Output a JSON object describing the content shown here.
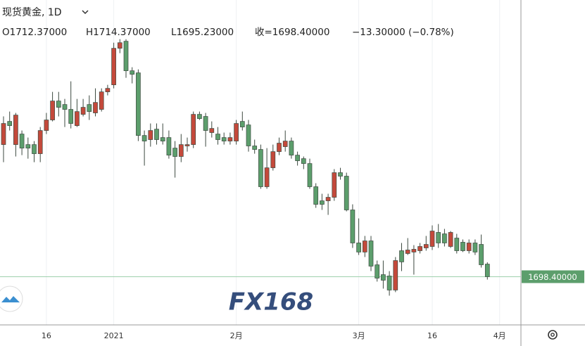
{
  "chart_data": {
    "type": "candlestick",
    "title": "现货黄金, 1D",
    "ohlc_header": [
      "O1712.37000",
      "H1714.37000",
      "L1695.23000",
      "收=1698.40000",
      "−13.30000 (−0.78%)"
    ],
    "watermark": "FX168",
    "categories": [
      null,
      null,
      null,
      null,
      null,
      null,
      null,
      "16",
      null,
      null,
      null,
      null,
      null,
      null,
      null,
      null,
      null,
      null,
      "2021",
      null,
      null,
      null,
      null,
      null,
      null,
      null,
      null,
      null,
      null,
      null,
      null,
      null,
      null,
      null,
      null,
      null,
      null,
      null,
      "2月",
      null,
      null,
      null,
      null,
      null,
      null,
      null,
      null,
      null,
      null,
      null,
      null,
      null,
      null,
      null,
      null,
      null,
      null,
      null,
      "3月",
      null,
      null,
      null,
      null,
      null,
      null,
      null,
      null,
      null,
      null,
      null,
      "16",
      null,
      null,
      null,
      null,
      null,
      null,
      null,
      null,
      null,
      null,
      "4月"
    ],
    "open": [
      1844.8,
      1870.5,
      1844.8,
      1856.5,
      1844.8,
      1844.8,
      1834.7,
      1860.4,
      1872.1,
      1893.1,
      1889.2,
      1883.8,
      1865.8,
      1878.3,
      1889.2,
      1879.9,
      1883.8,
      1903.2,
      1911.0,
      1951.5,
      1959.3,
      1926.6,
      1924.3,
      1854.9,
      1850.3,
      1861.9,
      1852.6,
      1852.6,
      1840.9,
      1831.6,
      1843.3,
      1844.8,
      1878.3,
      1876.0,
      1858.1,
      1856.5,
      1852.6,
      1848.7,
      1848.7,
      1870.5,
      1866.6,
      1843.3,
      1839.4,
      1798.1,
      1819.1,
      1837.0,
      1842.5,
      1848.7,
      1833.1,
      1829.2,
      1823.8,
      1798.1,
      1782.5,
      1782.5,
      1786.4,
      1813.7,
      1809.8,
      1772.4,
      1735.8,
      1725.7,
      1738.1,
      1711.6,
      1700.7,
      1699.2,
      1683.6,
      1727.2,
      1724.1,
      1725.7,
      1727.2,
      1730.3,
      1731.9,
      1747.5,
      1745.9,
      1731.9,
      1741.2,
      1736.6,
      1727.2,
      1735.8,
      1734.2,
      1712.37,
      null,
      null
    ],
    "high": [
      1876.0,
      1881.4,
      1879.9,
      1860.4,
      1852.6,
      1848.7,
      1864.3,
      1879.9,
      1903.2,
      1903.2,
      1895.4,
      1914.9,
      1895.4,
      1895.4,
      1899.3,
      1907.1,
      1907.1,
      1911.0,
      1957.7,
      1961.6,
      1961.6,
      1930.5,
      1928.1,
      1860.4,
      1868.2,
      1868.2,
      1868.2,
      1860.4,
      1848.7,
      1856.5,
      1852.6,
      1881.4,
      1881.4,
      1879.9,
      1870.5,
      1864.3,
      1858.1,
      1858.1,
      1872.1,
      1881.4,
      1872.1,
      1850.3,
      1844.8,
      1840.9,
      1844.8,
      1852.6,
      1860.4,
      1852.6,
      1837.0,
      1831.6,
      1829.2,
      1802.0,
      1790.3,
      1790.3,
      1817.6,
      1819.1,
      1813.7,
      1778.6,
      1763.0,
      1743.6,
      1743.6,
      1716.3,
      1716.3,
      1704.6,
      1720.2,
      1735.8,
      1741.2,
      1733.4,
      1735.8,
      1743.6,
      1755.3,
      1756.8,
      1751.4,
      1749.0,
      1745.9,
      1739.7,
      1739.7,
      1739.7,
      1745.1,
      1714.37,
      null,
      null
    ],
    "low": [
      1825.3,
      1860.4,
      1831.6,
      1833.1,
      1829.2,
      1825.3,
      1825.3,
      1856.5,
      1870.5,
      1876.0,
      1864.3,
      1862.7,
      1864.3,
      1876.0,
      1872.1,
      1876.0,
      1881.4,
      1899.3,
      1907.1,
      1946.1,
      1918.8,
      1912.6,
      1848.7,
      1821.5,
      1842.5,
      1844.8,
      1844.8,
      1829.2,
      1808.2,
      1825.3,
      1837.0,
      1840.9,
      1872.1,
      1842.5,
      1852.6,
      1844.8,
      1844.8,
      1844.8,
      1844.8,
      1860.4,
      1837.0,
      1834.7,
      1795.8,
      1795.8,
      1816.0,
      1833.1,
      1837.0,
      1829.2,
      1821.5,
      1817.6,
      1795.8,
      1774.7,
      1772.4,
      1766.9,
      1782.5,
      1805.9,
      1770.8,
      1730.3,
      1722.5,
      1720.2,
      1704.6,
      1693.0,
      1685.2,
      1677.4,
      1681.3,
      1704.6,
      1722.5,
      1700.7,
      1724.1,
      1727.2,
      1728.0,
      1730.3,
      1731.9,
      1730.3,
      1724.1,
      1725.7,
      1724.1,
      1722.5,
      1708.5,
      1695.23,
      null,
      null
    ],
    "close": [
      1868.2,
      1865.8,
      1877.5,
      1840.9,
      1840.9,
      1834.7,
      1860.4,
      1872.1,
      1893.1,
      1886.1,
      1883.8,
      1868.2,
      1881.4,
      1886.1,
      1881.4,
      1891.5,
      1903.2,
      1907.1,
      1951.5,
      1957.7,
      1926.6,
      1922.7,
      1854.9,
      1848.7,
      1860.4,
      1850.3,
      1848.7,
      1833.1,
      1831.6,
      1844.8,
      1844.8,
      1878.3,
      1873.6,
      1860.4,
      1862.7,
      1850.3,
      1848.7,
      1852.6,
      1868.2,
      1864.3,
      1843.3,
      1839.4,
      1798.1,
      1819.1,
      1837.0,
      1846.4,
      1848.7,
      1833.1,
      1826.9,
      1823.8,
      1798.1,
      1778.6,
      1778.6,
      1786.4,
      1813.7,
      1809.8,
      1772.4,
      1735.8,
      1725.7,
      1738.1,
      1710.1,
      1696.8,
      1694.5,
      1683.6,
      1716.3,
      1714.8,
      1728.0,
      1728.8,
      1731.9,
      1734.2,
      1749.0,
      1735.8,
      1735.8,
      1747.5,
      1727.2,
      1727.2,
      1735.8,
      1725.7,
      1711.6,
      1698.4,
      null,
      null
    ],
    "up_color": "#c4493b",
    "down_color": "#5c9e6c",
    "ylim": [
      1645,
      2005
    ],
    "last_price": {
      "value": 1698.4,
      "label": "1698.40000"
    },
    "grid": true
  }
}
